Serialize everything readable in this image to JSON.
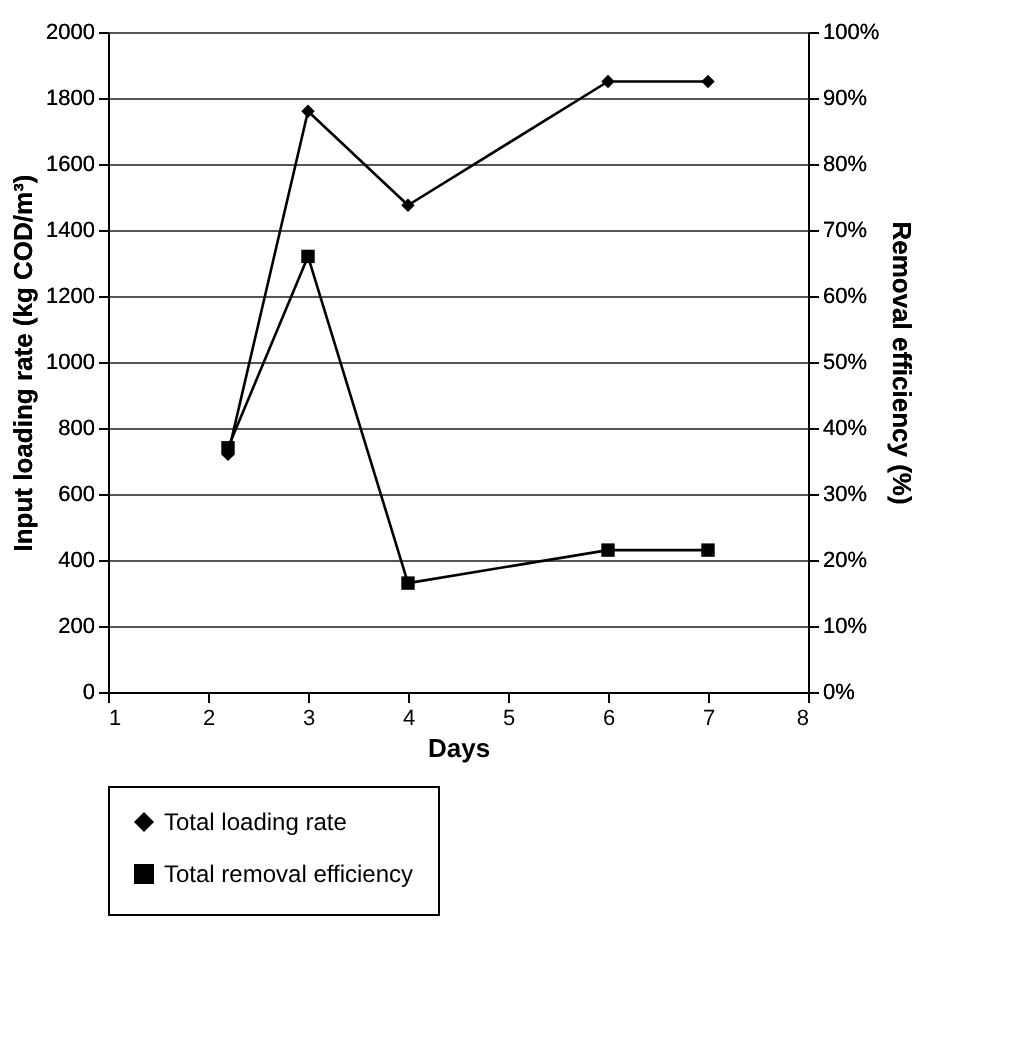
{
  "chart_data": {
    "type": "line",
    "xlabel": "Days",
    "ylabel": "Input loading rate (kg COD/m³)",
    "y2label": "Removal efficiency (%)",
    "xlim": [
      1,
      8
    ],
    "xticks": [
      1,
      2,
      3,
      4,
      5,
      6,
      7,
      8
    ],
    "ylim": [
      0,
      2000
    ],
    "yticks": [
      0,
      200,
      400,
      600,
      800,
      1000,
      1200,
      1400,
      1600,
      1800,
      2000
    ],
    "y2lim": [
      0,
      100
    ],
    "y2ticks": [
      {
        "value": 0,
        "label": "0%"
      },
      {
        "value": 10,
        "label": "10%"
      },
      {
        "value": 20,
        "label": "20%"
      },
      {
        "value": 30,
        "label": "30%"
      },
      {
        "value": 40,
        "label": "40%"
      },
      {
        "value": 50,
        "label": "50%"
      },
      {
        "value": 60,
        "label": "60%"
      },
      {
        "value": 70,
        "label": "70%"
      },
      {
        "value": 80,
        "label": "80%"
      },
      {
        "value": 90,
        "label": "90%"
      },
      {
        "value": 100,
        "label": "100%"
      }
    ],
    "x": [
      2.2,
      3,
      4,
      6,
      7
    ],
    "series": [
      {
        "name": "Total loading rate",
        "color": "#000000",
        "marker": "diamond",
        "values": [
          720,
          1760,
          1475,
          1850,
          1850
        ]
      },
      {
        "name": "Total removal efficiency",
        "color": "#000000",
        "marker": "square",
        "axis": "y2",
        "values": [
          37,
          66,
          16.5,
          21.5,
          21.5
        ]
      }
    ],
    "grid": "y",
    "legend": "bottom",
    "line_style": "solid"
  }
}
